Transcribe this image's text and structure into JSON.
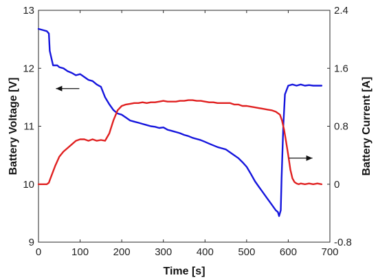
{
  "chart_data": {
    "type": "line",
    "title": "",
    "xlabel": "Time [s]",
    "ylabel_left": "Battery Voltage [V]",
    "ylabel_right": "Battery Current [A]",
    "xlim": [
      0,
      700
    ],
    "ylim_left": [
      9,
      13
    ],
    "ylim_right": [
      -0.8,
      2.4
    ],
    "x_ticks": [
      "0",
      "100",
      "200",
      "300",
      "400",
      "500",
      "600",
      "700"
    ],
    "y_left_ticks": [
      "9",
      "10",
      "11",
      "12",
      "13"
    ],
    "y_right_ticks": [
      "-0.8",
      "0",
      "0.8",
      "1.6",
      "2.4"
    ],
    "grid": false,
    "legend": "none",
    "annotations": [
      {
        "type": "arrow",
        "direction": "left",
        "points_to": "left axis",
        "near_x": 70,
        "near_y_left": 11.65
      },
      {
        "type": "arrow",
        "direction": "right",
        "points_to": "right axis",
        "near_x": 630,
        "near_y_left": 10.45
      }
    ],
    "series": [
      {
        "axis": "left",
        "color": "#1515dd",
        "x": [
          0,
          10,
          20,
          25,
          27,
          35,
          45,
          50,
          60,
          70,
          80,
          90,
          100,
          110,
          120,
          130,
          140,
          150,
          160,
          170,
          180,
          190,
          200,
          210,
          220,
          230,
          240,
          250,
          260,
          270,
          280,
          290,
          300,
          310,
          320,
          330,
          340,
          350,
          360,
          370,
          380,
          390,
          400,
          410,
          420,
          430,
          440,
          450,
          460,
          470,
          480,
          490,
          500,
          510,
          520,
          530,
          540,
          550,
          560,
          570,
          575,
          578,
          582,
          584,
          588,
          592,
          600,
          610,
          620,
          630,
          640,
          650,
          660,
          670,
          680
        ],
        "values": [
          12.68,
          12.66,
          12.64,
          12.6,
          12.3,
          12.05,
          12.05,
          12.02,
          12.0,
          11.95,
          11.92,
          11.88,
          11.9,
          11.85,
          11.8,
          11.78,
          11.72,
          11.68,
          11.5,
          11.38,
          11.28,
          11.22,
          11.2,
          11.15,
          11.1,
          11.08,
          11.06,
          11.04,
          11.02,
          11.0,
          10.99,
          10.97,
          10.98,
          10.94,
          10.92,
          10.9,
          10.88,
          10.85,
          10.83,
          10.8,
          10.78,
          10.76,
          10.73,
          10.7,
          10.67,
          10.64,
          10.62,
          10.6,
          10.55,
          10.5,
          10.45,
          10.38,
          10.3,
          10.18,
          10.05,
          9.95,
          9.85,
          9.75,
          9.65,
          9.55,
          9.52,
          9.45,
          9.55,
          10.1,
          11.0,
          11.55,
          11.7,
          11.72,
          11.7,
          11.72,
          11.7,
          11.71,
          11.7,
          11.7,
          11.7
        ]
      },
      {
        "axis": "right",
        "color": "#e02020",
        "x": [
          0,
          10,
          20,
          25,
          30,
          40,
          50,
          60,
          70,
          80,
          90,
          100,
          110,
          120,
          130,
          140,
          150,
          160,
          170,
          180,
          190,
          200,
          210,
          220,
          230,
          240,
          250,
          260,
          270,
          280,
          290,
          300,
          310,
          320,
          330,
          340,
          350,
          360,
          370,
          380,
          390,
          400,
          410,
          420,
          430,
          440,
          450,
          460,
          470,
          480,
          490,
          500,
          510,
          520,
          530,
          540,
          550,
          560,
          570,
          580,
          585,
          590,
          595,
          600,
          605,
          610,
          615,
          620,
          625,
          630,
          640,
          650,
          660,
          670,
          680
        ],
        "values": [
          0.0,
          0.0,
          0.0,
          0.02,
          0.1,
          0.25,
          0.38,
          0.45,
          0.5,
          0.55,
          0.6,
          0.62,
          0.62,
          0.6,
          0.62,
          0.6,
          0.61,
          0.6,
          0.7,
          0.88,
          1.02,
          1.08,
          1.1,
          1.11,
          1.12,
          1.12,
          1.13,
          1.12,
          1.13,
          1.13,
          1.14,
          1.15,
          1.14,
          1.14,
          1.14,
          1.15,
          1.15,
          1.16,
          1.16,
          1.15,
          1.15,
          1.14,
          1.13,
          1.13,
          1.12,
          1.12,
          1.12,
          1.12,
          1.1,
          1.1,
          1.08,
          1.08,
          1.07,
          1.06,
          1.05,
          1.04,
          1.03,
          1.02,
          1.0,
          0.96,
          0.88,
          0.75,
          0.58,
          0.4,
          0.2,
          0.08,
          0.03,
          0.01,
          0.0,
          0.01,
          0.0,
          0.01,
          0.0,
          0.01,
          0.0
        ]
      }
    ]
  }
}
